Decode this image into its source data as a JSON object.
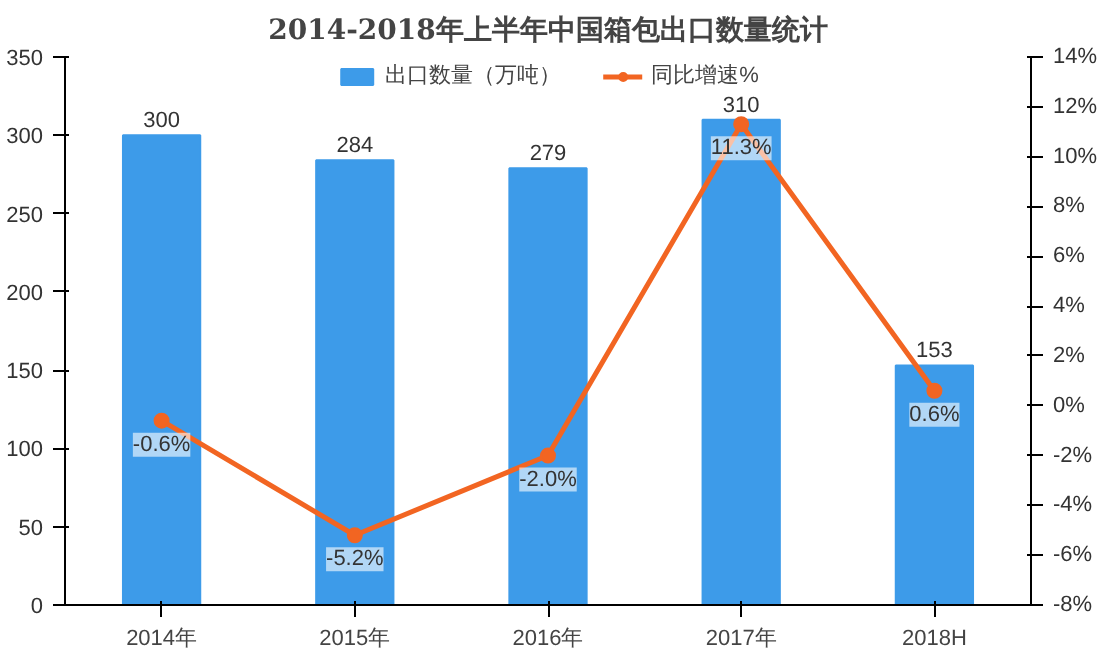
{
  "chart_data": {
    "type": "bar",
    "title": "2014-2018年上半年中国箱包出口数量统计",
    "categories": [
      "2014年",
      "2015年",
      "2016年",
      "2017年",
      "2018H"
    ],
    "series": [
      {
        "name": "出口数量（万吨）",
        "color": "#3d9be9",
        "values": [
          300,
          284,
          279,
          310,
          153
        ],
        "value_labels": [
          "300",
          "284",
          "279",
          "310",
          "153"
        ]
      },
      {
        "name": "同比增速%",
        "type": "line",
        "axis": "y2",
        "color": "#f26522",
        "marker": "circle",
        "values": [
          -0.6,
          -5.2,
          -2.0,
          11.3,
          0.6
        ],
        "value_labels": [
          "-0.6%",
          "-5.2%",
          "-2.0%",
          "11.3%",
          "0.6%"
        ]
      }
    ],
    "ylim": [
      0,
      350
    ],
    "yticks": [
      0,
      50,
      100,
      150,
      200,
      250,
      300,
      350
    ],
    "y2lim": [
      -8,
      14
    ],
    "y2ticks": [
      {
        "value": -8,
        "label": "-8%"
      },
      {
        "value": -6,
        "label": "-6%"
      },
      {
        "value": -4,
        "label": "-4%"
      },
      {
        "value": -2,
        "label": "-2%"
      },
      {
        "value": 0,
        "label": "0%"
      },
      {
        "value": 2,
        "label": "2%"
      },
      {
        "value": 4,
        "label": "4%"
      },
      {
        "value": 6,
        "label": "6%"
      },
      {
        "value": 8,
        "label": "8%"
      },
      {
        "value": 10,
        "label": "10%"
      },
      {
        "value": 12,
        "label": "12%"
      },
      {
        "value": 14,
        "label": "14%"
      }
    ],
    "grid": false,
    "legend": "top"
  }
}
